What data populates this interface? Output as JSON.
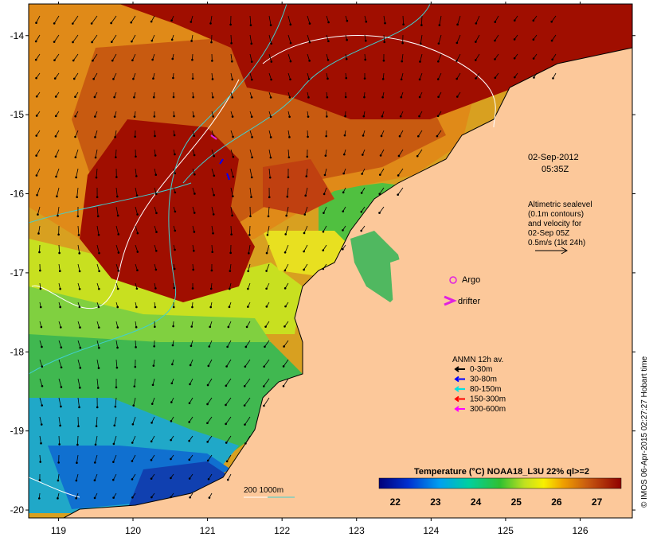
{
  "map": {
    "lon_range": [
      118.6,
      126.7
    ],
    "lat_range": [
      -20.1,
      -13.6
    ],
    "x_ticks": [
      "119",
      "120",
      "121",
      "122",
      "123",
      "124",
      "125",
      "126"
    ],
    "y_ticks": [
      "-14",
      "-15",
      "-16",
      "-17",
      "-18",
      "-19",
      "-20"
    ]
  },
  "date_label": {
    "date": "02-Sep-2012",
    "time": "05:35Z"
  },
  "altimetry": {
    "lines": [
      "Altimetric sealevel",
      "(0.1m contours)",
      "and velocity for",
      "02-Sep 05Z",
      "0.5m/s (1kt 24h)"
    ]
  },
  "markers": {
    "argo": "Argo",
    "drifter": "drifter",
    "argo_color": "#e020e0",
    "drifter_color": "#e020e0"
  },
  "anmn": {
    "title": "ANMN 12h av.",
    "items": [
      {
        "label": "0-30m",
        "color": "#000000"
      },
      {
        "label": "30-80m",
        "color": "#0000ff"
      },
      {
        "label": "80-150m",
        "color": "#00e0e0"
      },
      {
        "label": "150-300m",
        "color": "#ff0000"
      },
      {
        "label": "300-600m",
        "color": "#ff00ff"
      }
    ]
  },
  "depth_contours": {
    "label": "200 1000m",
    "color_200": "#ffffff",
    "color_1000": "#40d0d0"
  },
  "colorbar": {
    "title": "Temperature (°C) NOAA18_L3U 22% ql>=2",
    "ticks": [
      "22",
      "23",
      "24",
      "25",
      "26",
      "27"
    ],
    "tick_values": [
      22,
      23,
      24,
      25,
      26,
      27
    ],
    "range": [
      21.6,
      27.6
    ]
  },
  "credit": "© IMOS 06-Apr-2015 02:27:27 Hobart time",
  "colors": {
    "land": "#fcc89a",
    "hot": "#a00e00",
    "warm": "#c85a10"
  }
}
